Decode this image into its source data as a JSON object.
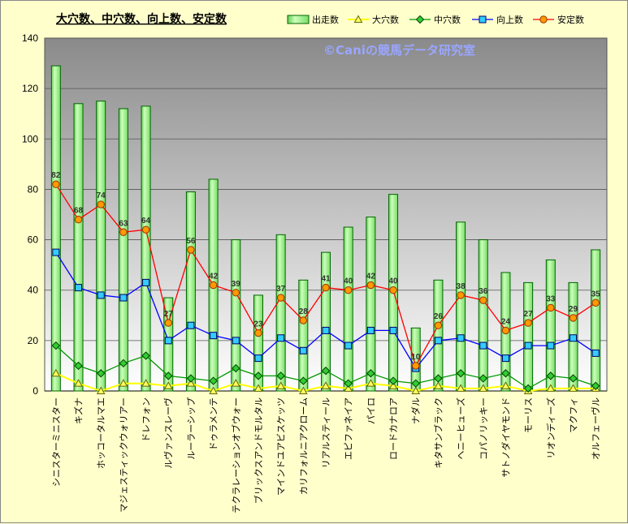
{
  "chart_data": {
    "type": "bar",
    "title": "大穴数、中穴数、向上数、安定数",
    "watermark": "©Caniの競馬データ研究室",
    "ylim": [
      0,
      140
    ],
    "yticks": [
      0,
      20,
      40,
      60,
      80,
      100,
      120,
      140
    ],
    "grid": true,
    "legend_position": "top-right",
    "categories": [
      "シニスターミニスター",
      "キズナ",
      "ホッコータルマエ",
      "マジェスティックウォリアー",
      "ドレフォン",
      "ルヴァンスレーヴ",
      "ルーラーシップ",
      "ドゥラメンテ",
      "テクラレーションオブウォー",
      "ブリックスアンドモルタル",
      "マインドユアビスケッツ",
      "カリフォルニアクローム",
      "リアルスティール",
      "エピファネイア",
      "パイロ",
      "ロードカナロア",
      "ナダル",
      "キタサンブラック",
      "ヘニーヒューズ",
      "コパノリッキー",
      "サトノダイヤモンド",
      "モーリス",
      "リオンディーズ",
      "マクフィ",
      "オルフェーヴル"
    ],
    "series": [
      {
        "name": "出走数",
        "type": "bar",
        "color": "#99ee88",
        "values": [
          129,
          114,
          115,
          112,
          113,
          37,
          79,
          84,
          60,
          38,
          62,
          44,
          55,
          65,
          69,
          78,
          25,
          44,
          67,
          60,
          47,
          43,
          52,
          43,
          56
        ]
      },
      {
        "name": "大穴数",
        "type": "line",
        "color": "#ffff00",
        "values": [
          7,
          3,
          0,
          3,
          3,
          2,
          3,
          0,
          3,
          1,
          2,
          0,
          2,
          1,
          3,
          2,
          0,
          2,
          1,
          1,
          2,
          0,
          1,
          1,
          1
        ]
      },
      {
        "name": "中穴数",
        "type": "line",
        "color": "#009900",
        "values": [
          18,
          10,
          7,
          11,
          14,
          6,
          5,
          4,
          9,
          6,
          6,
          4,
          8,
          3,
          7,
          4,
          3,
          5,
          7,
          5,
          7,
          1,
          6,
          5,
          2
        ]
      },
      {
        "name": "向上数",
        "type": "line",
        "color": "#0000ff",
        "values": [
          55,
          41,
          38,
          37,
          43,
          20,
          26,
          22,
          20,
          13,
          21,
          16,
          24,
          18,
          24,
          24,
          9,
          20,
          21,
          18,
          13,
          18,
          18,
          21,
          15
        ]
      },
      {
        "name": "安定数",
        "type": "line",
        "color": "#ff0000",
        "values": [
          82,
          68,
          74,
          63,
          64,
          27,
          56,
          42,
          39,
          23,
          37,
          28,
          41,
          40,
          42,
          40,
          10,
          26,
          38,
          36,
          24,
          27,
          33,
          29,
          35
        ]
      }
    ],
    "data_labels_series": "安定数"
  },
  "colors": {
    "background": "#ffffcc",
    "plot_top": "#8a8a8a",
    "plot_bottom": "#ffffff",
    "bar_fill": "#99ee88",
    "bar_stroke": "#006600",
    "marker_mid": "#33cc33",
    "marker_up": "#33ccff",
    "marker_stable": "#ff9900",
    "watermark": "#9aa6ff"
  }
}
